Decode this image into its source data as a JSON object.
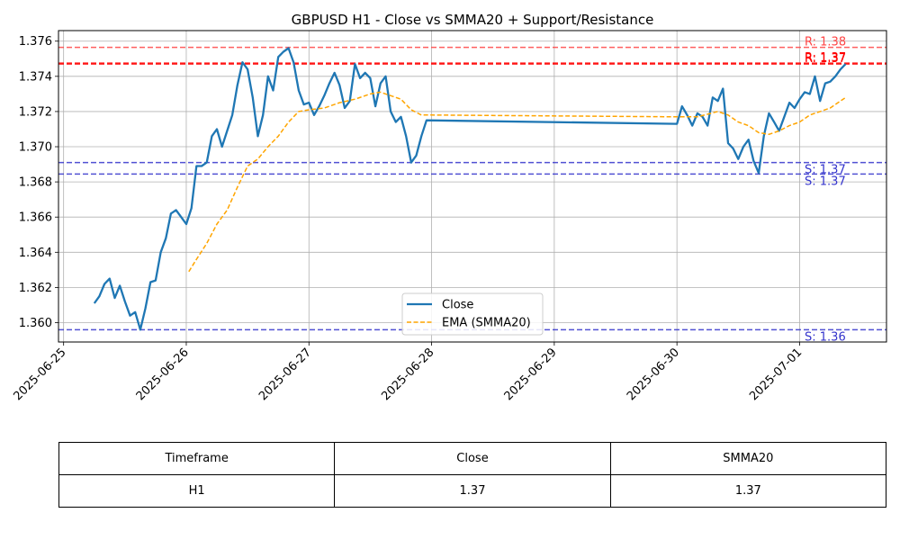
{
  "chart_data": {
    "type": "line",
    "title": "GBPUSD H1 - Close vs SMMA20 + Support/Resistance",
    "x_axis": {
      "type": "date",
      "range": [
        "2025-06-24 23:00",
        "2025-07-01 17:00"
      ],
      "ticks": [
        "2025-06-25",
        "2025-06-26",
        "2025-06-27",
        "2025-06-28",
        "2025-06-29",
        "2025-06-30",
        "2025-07-01"
      ]
    },
    "y_axis": {
      "range": [
        1.3589,
        1.3766
      ],
      "ticks": [
        "1.360",
        "1.362",
        "1.364",
        "1.366",
        "1.368",
        "1.370",
        "1.372",
        "1.374",
        "1.376"
      ]
    },
    "grid": true,
    "legend_position": "bottom-center",
    "series": [
      {
        "name": "Close",
        "color": "#1f77b4",
        "style": "solid",
        "points": [
          [
            "2025-06-25 06:00",
            1.3611
          ],
          [
            "2025-06-25 07:00",
            1.3615
          ],
          [
            "2025-06-25 08:00",
            1.3622
          ],
          [
            "2025-06-25 09:00",
            1.3625
          ],
          [
            "2025-06-25 10:00",
            1.3614
          ],
          [
            "2025-06-25 11:00",
            1.3621
          ],
          [
            "2025-06-25 12:00",
            1.3612
          ],
          [
            "2025-06-25 13:00",
            1.3604
          ],
          [
            "2025-06-25 14:00",
            1.3606
          ],
          [
            "2025-06-25 15:00",
            1.3596
          ],
          [
            "2025-06-25 16:00",
            1.3608
          ],
          [
            "2025-06-25 17:00",
            1.3623
          ],
          [
            "2025-06-25 18:00",
            1.3624
          ],
          [
            "2025-06-25 19:00",
            1.364
          ],
          [
            "2025-06-25 20:00",
            1.3648
          ],
          [
            "2025-06-25 21:00",
            1.3662
          ],
          [
            "2025-06-25 22:00",
            1.3664
          ],
          [
            "2025-06-25 23:00",
            1.366
          ],
          [
            "2025-06-26 00:00",
            1.3656
          ],
          [
            "2025-06-26 01:00",
            1.3665
          ],
          [
            "2025-06-26 02:00",
            1.3689
          ],
          [
            "2025-06-26 03:00",
            1.3689
          ],
          [
            "2025-06-26 04:00",
            1.3691
          ],
          [
            "2025-06-26 05:00",
            1.3706
          ],
          [
            "2025-06-26 06:00",
            1.371
          ],
          [
            "2025-06-26 07:00",
            1.37
          ],
          [
            "2025-06-26 08:00",
            1.3709
          ],
          [
            "2025-06-26 09:00",
            1.3718
          ],
          [
            "2025-06-26 10:00",
            1.3735
          ],
          [
            "2025-06-26 11:00",
            1.3748
          ],
          [
            "2025-06-26 12:00",
            1.3744
          ],
          [
            "2025-06-26 13:00",
            1.3728
          ],
          [
            "2025-06-26 14:00",
            1.3706
          ],
          [
            "2025-06-26 15:00",
            1.3718
          ],
          [
            "2025-06-26 16:00",
            1.374
          ],
          [
            "2025-06-26 17:00",
            1.3732
          ],
          [
            "2025-06-26 18:00",
            1.3751
          ],
          [
            "2025-06-26 19:00",
            1.3754
          ],
          [
            "2025-06-26 20:00",
            1.3756
          ],
          [
            "2025-06-26 21:00",
            1.3748
          ],
          [
            "2025-06-26 22:00",
            1.3732
          ],
          [
            "2025-06-26 23:00",
            1.3724
          ],
          [
            "2025-06-27 00:00",
            1.3725
          ],
          [
            "2025-06-27 01:00",
            1.3718
          ],
          [
            "2025-06-27 02:00",
            1.3723
          ],
          [
            "2025-06-27 03:00",
            1.3729
          ],
          [
            "2025-06-27 04:00",
            1.3736
          ],
          [
            "2025-06-27 05:00",
            1.3742
          ],
          [
            "2025-06-27 06:00",
            1.3735
          ],
          [
            "2025-06-27 07:00",
            1.3722
          ],
          [
            "2025-06-27 08:00",
            1.3726
          ],
          [
            "2025-06-27 09:00",
            1.3747
          ],
          [
            "2025-06-27 10:00",
            1.3739
          ],
          [
            "2025-06-27 11:00",
            1.3742
          ],
          [
            "2025-06-27 12:00",
            1.3739
          ],
          [
            "2025-06-27 13:00",
            1.3723
          ],
          [
            "2025-06-27 14:00",
            1.3736
          ],
          [
            "2025-06-27 15:00",
            1.374
          ],
          [
            "2025-06-27 16:00",
            1.372
          ],
          [
            "2025-06-27 17:00",
            1.3714
          ],
          [
            "2025-06-27 18:00",
            1.3717
          ],
          [
            "2025-06-27 19:00",
            1.3706
          ],
          [
            "2025-06-27 20:00",
            1.3691
          ],
          [
            "2025-06-27 21:00",
            1.3695
          ],
          [
            "2025-06-27 22:00",
            1.3706
          ],
          [
            "2025-06-27 23:00",
            1.3715
          ],
          [
            "2025-06-30 00:00",
            1.3713
          ],
          [
            "2025-06-30 01:00",
            1.3723
          ],
          [
            "2025-06-30 02:00",
            1.3718
          ],
          [
            "2025-06-30 03:00",
            1.3712
          ],
          [
            "2025-06-30 04:00",
            1.3719
          ],
          [
            "2025-06-30 05:00",
            1.3717
          ],
          [
            "2025-06-30 06:00",
            1.3712
          ],
          [
            "2025-06-30 07:00",
            1.3728
          ],
          [
            "2025-06-30 08:00",
            1.3726
          ],
          [
            "2025-06-30 09:00",
            1.3733
          ],
          [
            "2025-06-30 10:00",
            1.3702
          ],
          [
            "2025-06-30 11:00",
            1.3699
          ],
          [
            "2025-06-30 12:00",
            1.3693
          ],
          [
            "2025-06-30 13:00",
            1.37
          ],
          [
            "2025-06-30 14:00",
            1.3704
          ],
          [
            "2025-06-30 15:00",
            1.3692
          ],
          [
            "2025-06-30 16:00",
            1.3685
          ],
          [
            "2025-06-30 17:00",
            1.3706
          ],
          [
            "2025-06-30 18:00",
            1.3719
          ],
          [
            "2025-06-30 19:00",
            1.3714
          ],
          [
            "2025-06-30 20:00",
            1.3709
          ],
          [
            "2025-06-30 21:00",
            1.3717
          ],
          [
            "2025-06-30 22:00",
            1.3725
          ],
          [
            "2025-06-30 23:00",
            1.3722
          ],
          [
            "2025-07-01 00:00",
            1.3727
          ],
          [
            "2025-07-01 01:00",
            1.3731
          ],
          [
            "2025-07-01 02:00",
            1.373
          ],
          [
            "2025-07-01 03:00",
            1.374
          ],
          [
            "2025-07-01 04:00",
            1.3726
          ],
          [
            "2025-07-01 05:00",
            1.3736
          ],
          [
            "2025-07-01 06:00",
            1.3737
          ],
          [
            "2025-07-01 07:00",
            1.374
          ],
          [
            "2025-07-01 08:00",
            1.3744
          ],
          [
            "2025-07-01 09:00",
            1.3747
          ]
        ]
      },
      {
        "name": "EMA (SMMA20)",
        "color": "#ffa500",
        "style": "dashed",
        "points": [
          [
            "2025-06-26 00:30",
            1.3629
          ],
          [
            "2025-06-26 02:00",
            1.3636
          ],
          [
            "2025-06-26 04:00",
            1.3645
          ],
          [
            "2025-06-26 06:00",
            1.3656
          ],
          [
            "2025-06-26 08:00",
            1.3664
          ],
          [
            "2025-06-26 10:00",
            1.3677
          ],
          [
            "2025-06-26 12:00",
            1.3689
          ],
          [
            "2025-06-26 14:00",
            1.3693
          ],
          [
            "2025-06-26 16:00",
            1.37
          ],
          [
            "2025-06-26 18:00",
            1.3706
          ],
          [
            "2025-06-26 20:00",
            1.3714
          ],
          [
            "2025-06-26 22:00",
            1.372
          ],
          [
            "2025-06-27 00:00",
            1.3721
          ],
          [
            "2025-06-27 03:00",
            1.3722
          ],
          [
            "2025-06-27 06:00",
            1.3725
          ],
          [
            "2025-06-27 09:00",
            1.3727
          ],
          [
            "2025-06-27 12:00",
            1.373
          ],
          [
            "2025-06-27 14:00",
            1.3731
          ],
          [
            "2025-06-27 16:00",
            1.3729
          ],
          [
            "2025-06-27 18:00",
            1.3727
          ],
          [
            "2025-06-27 20:00",
            1.3721
          ],
          [
            "2025-06-27 22:00",
            1.3718
          ],
          [
            "2025-06-28 00:00",
            1.3718
          ],
          [
            "2025-06-30 00:00",
            1.3717
          ],
          [
            "2025-06-30 04:00",
            1.3717
          ],
          [
            "2025-06-30 08:00",
            1.372
          ],
          [
            "2025-06-30 10:00",
            1.3718
          ],
          [
            "2025-06-30 12:00",
            1.3714
          ],
          [
            "2025-06-30 14:00",
            1.3712
          ],
          [
            "2025-06-30 16:00",
            1.3708
          ],
          [
            "2025-06-30 18:00",
            1.3707
          ],
          [
            "2025-06-30 20:00",
            1.3709
          ],
          [
            "2025-06-30 22:00",
            1.3712
          ],
          [
            "2025-07-01 00:00",
            1.3714
          ],
          [
            "2025-07-01 02:00",
            1.3718
          ],
          [
            "2025-07-01 04:00",
            1.372
          ],
          [
            "2025-07-01 06:00",
            1.3722
          ],
          [
            "2025-07-01 09:00",
            1.3728
          ]
        ]
      }
    ],
    "levels": [
      {
        "kind": "resistance",
        "value": 1.37565,
        "label": "R: 1.38",
        "color": "#ff4444",
        "style": "dashed"
      },
      {
        "kind": "resistance",
        "value": 1.37475,
        "label": "R: 1.37",
        "color": "#ff0000",
        "style": "dashed"
      },
      {
        "kind": "resistance",
        "value": 1.3747,
        "label": "R: 1.37",
        "color": "#ff0000",
        "style": "dashed"
      },
      {
        "kind": "support",
        "value": 1.3691,
        "label": "S: 1.37",
        "color": "#3333cc",
        "style": "dashed"
      },
      {
        "kind": "support",
        "value": 1.36845,
        "label": "S: 1.37",
        "color": "#3333cc",
        "style": "dashed"
      },
      {
        "kind": "support",
        "value": 1.3596,
        "label": "S: 1.36",
        "color": "#3333cc",
        "style": "dashed"
      }
    ],
    "table": {
      "headers": [
        "Timeframe",
        "Close",
        "SMMA20"
      ],
      "rows": [
        [
          "H1",
          "1.37",
          "1.37"
        ]
      ]
    }
  }
}
